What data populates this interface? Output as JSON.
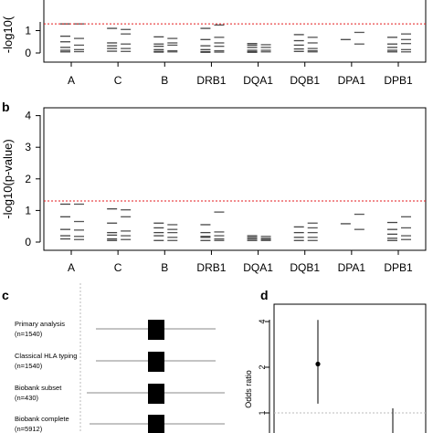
{
  "panels": {
    "a": {
      "ylabel_visible": "-log10(",
      "threshold": 1.301,
      "ylim": [
        0,
        1.7
      ],
      "yticks": [
        "0",
        "1"
      ],
      "categories": [
        "A",
        "C",
        "B",
        "DRB1",
        "DQA1",
        "DQB1",
        "DPA1",
        "DPB1"
      ]
    },
    "b": {
      "letter": "b",
      "ylabel": "-log10(p-value)",
      "threshold": 1.301,
      "ylim": [
        0,
        4.25
      ],
      "yticks": [
        "0",
        "1",
        "2",
        "3",
        "4"
      ],
      "categories": [
        "A",
        "C",
        "B",
        "DRB1",
        "DQA1",
        "DQB1",
        "DPA1",
        "DPB1"
      ]
    },
    "c": {
      "letter": "c",
      "rows": [
        {
          "label": "Primary analysis",
          "n": "(n=1540)"
        },
        {
          "label": "Classical HLA typing",
          "n": "(n=1540)"
        },
        {
          "label": "Biobank subset",
          "n": "(n=430)"
        },
        {
          "label": "Biobank complete",
          "n": "(n=5912)"
        }
      ]
    },
    "d": {
      "letter": "d",
      "ylabel": "Odds ratio",
      "yticks": [
        "1",
        "2",
        "4"
      ]
    }
  },
  "chart_data": [
    {
      "type": "scatter",
      "panel": "a",
      "title": "",
      "xlabel": "",
      "ylabel": "-log10(p-value)",
      "ylim": [
        0,
        1.7
      ],
      "threshold_line": 1.301,
      "categories": [
        "A",
        "C",
        "B",
        "DRB1",
        "DQA1",
        "DQB1",
        "DPA1",
        "DPB1"
      ],
      "series": [
        {
          "values": [
            [
              1.3,
              0.75,
              0.5,
              0.25,
              0.12,
              0.05
            ],
            [
              1.1,
              0.45,
              0.32,
              0.2,
              0.08
            ],
            [
              0.72,
              0.4,
              0.3,
              0.15,
              0.07,
              0.04
            ],
            [
              1.1,
              0.6,
              0.32,
              0.15,
              0.06,
              0.03
            ],
            [
              0.42,
              0.35,
              0.25,
              0.12,
              0.06,
              0.03
            ],
            [
              0.82,
              0.55,
              0.35,
              0.18,
              0.07
            ],
            [
              0.6
            ],
            [
              0.7,
              0.4,
              0.25,
              0.12,
              0.05
            ]
          ]
        },
        {
          "values": [
            [
              1.3,
              0.65,
              0.35,
              0.15,
              0.06
            ],
            [
              1.05,
              0.85,
              0.4,
              0.2,
              0.07
            ],
            [
              0.65,
              0.45,
              0.35,
              0.1,
              0.05
            ],
            [
              1.25,
              0.7,
              0.45,
              0.3,
              0.1,
              0.04
            ],
            [
              0.37,
              0.25,
              0.12,
              0.05
            ],
            [
              0.7,
              0.45,
              0.2,
              0.1,
              0.05
            ],
            [
              0.92,
              0.4
            ],
            [
              0.85,
              0.6,
              0.42,
              0.15,
              0.05
            ]
          ]
        }
      ]
    },
    {
      "type": "scatter",
      "panel": "b",
      "title": "",
      "xlabel": "",
      "ylabel": "-log10(p-value)",
      "ylim": [
        0,
        4.25
      ],
      "threshold_line": 1.301,
      "categories": [
        "A",
        "C",
        "B",
        "DRB1",
        "DQA1",
        "DQB1",
        "DPA1",
        "DPB1"
      ],
      "series": [
        {
          "values": [
            [
              1.2,
              0.8,
              0.4,
              0.2,
              0.1
            ],
            [
              1.05,
              0.6,
              0.3,
              0.22,
              0.1,
              0.05
            ],
            [
              0.6,
              0.45,
              0.3,
              0.2,
              0.05
            ],
            [
              0.55,
              0.3,
              0.18,
              0.15,
              0.05
            ],
            [
              0.2,
              0.15,
              0.1,
              0.05
            ],
            [
              0.48,
              0.3,
              0.15,
              0.05
            ],
            [
              0.58
            ],
            [
              0.62,
              0.4,
              0.25,
              0.12,
              0.05
            ]
          ]
        },
        {
          "values": [
            [
              1.2,
              0.65,
              0.38,
              0.18,
              0.08
            ],
            [
              1.02,
              0.8,
              0.35,
              0.2,
              0.08
            ],
            [
              0.55,
              0.4,
              0.3,
              0.15,
              0.05
            ],
            [
              0.95,
              0.32,
              0.2,
              0.1,
              0.05
            ],
            [
              0.18,
              0.12,
              0.08,
              0.05
            ],
            [
              0.6,
              0.45,
              0.3,
              0.15,
              0.05
            ],
            [
              0.88,
              0.4
            ],
            [
              0.8,
              0.45,
              0.2,
              0.08
            ]
          ]
        }
      ]
    },
    {
      "type": "scatter",
      "panel": "d",
      "ylabel": "Odds ratio",
      "points": [
        {
          "estimate": 2.1,
          "ci": [
            1.15,
            4.1
          ]
        }
      ]
    }
  ]
}
